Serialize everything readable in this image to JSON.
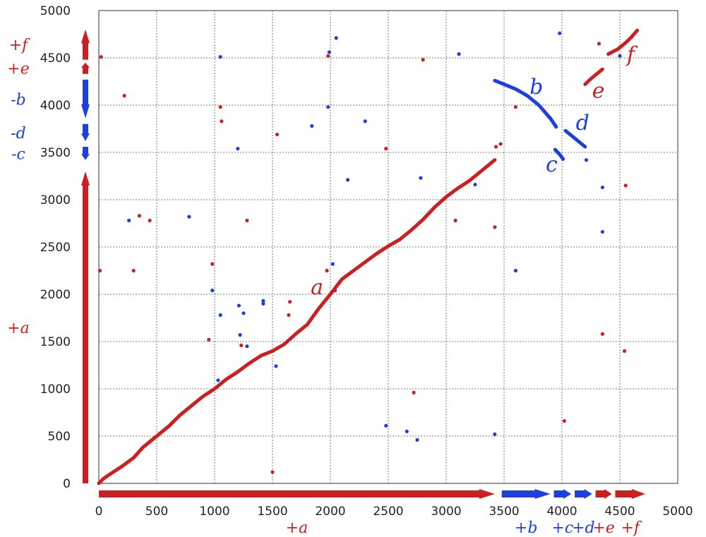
{
  "chart_data": {
    "type": "scatter",
    "title": "",
    "xlabel": "",
    "ylabel": "",
    "xlim": [
      0,
      5000
    ],
    "ylim": [
      0,
      5000
    ],
    "grid": true,
    "x_ticks": [
      "0",
      "500",
      "1000",
      "1500",
      "2000",
      "2500",
      "3000",
      "3500",
      "4000",
      "4500",
      "5000"
    ],
    "y_ticks": [
      "0",
      "500",
      "1000",
      "1500",
      "2000",
      "2500",
      "3000",
      "3500",
      "4000",
      "4500",
      "5000"
    ],
    "colors": {
      "forward": "#cc1f1f",
      "reverse": "#1d3fe0"
    },
    "x_segments": [
      {
        "label": "+a",
        "start": 0,
        "end": 3420,
        "color": "#cc1f1f"
      },
      {
        "label": "+b",
        "start": 3480,
        "end": 3900,
        "color": "#1d3fe0"
      },
      {
        "label": "+c",
        "start": 3930,
        "end": 4080,
        "color": "#1d3fe0"
      },
      {
        "label": "+d",
        "start": 4110,
        "end": 4260,
        "color": "#1d3fe0"
      },
      {
        "label": "+e",
        "start": 4290,
        "end": 4430,
        "color": "#cc1f1f"
      },
      {
        "label": "+f",
        "start": 4460,
        "end": 4720,
        "color": "#cc1f1f"
      }
    ],
    "y_segments": [
      {
        "label": "+a",
        "start": 0,
        "end": 3300,
        "color": "#cc1f1f",
        "dir": "up"
      },
      {
        "label": "-c",
        "start": 3420,
        "end": 3560,
        "color": "#1d3fe0",
        "dir": "down"
      },
      {
        "label": "-d",
        "start": 3620,
        "end": 3800,
        "color": "#1d3fe0",
        "dir": "down"
      },
      {
        "label": "-b",
        "start": 3860,
        "end": 4270,
        "color": "#1d3fe0",
        "dir": "down"
      },
      {
        "label": "+e",
        "start": 4330,
        "end": 4450,
        "color": "#cc1f1f",
        "dir": "up"
      },
      {
        "label": "+f",
        "start": 4480,
        "end": 4800,
        "color": "#cc1f1f",
        "dir": "up"
      }
    ],
    "series": [
      {
        "name": "a",
        "color": "#cc1f1f",
        "points": [
          [
            0,
            0
          ],
          [
            40,
            50
          ],
          [
            100,
            100
          ],
          [
            200,
            180
          ],
          [
            300,
            270
          ],
          [
            380,
            380
          ],
          [
            450,
            450
          ],
          [
            520,
            520
          ],
          [
            600,
            600
          ],
          [
            700,
            720
          ],
          [
            800,
            820
          ],
          [
            900,
            920
          ],
          [
            1000,
            1000
          ],
          [
            1100,
            1100
          ],
          [
            1200,
            1180
          ],
          [
            1300,
            1270
          ],
          [
            1400,
            1350
          ],
          [
            1500,
            1400
          ],
          [
            1600,
            1470
          ],
          [
            1700,
            1580
          ],
          [
            1800,
            1680
          ],
          [
            1900,
            1850
          ],
          [
            2000,
            2000
          ],
          [
            2100,
            2160
          ],
          [
            2200,
            2250
          ],
          [
            2300,
            2340
          ],
          [
            2400,
            2430
          ],
          [
            2500,
            2510
          ],
          [
            2600,
            2580
          ],
          [
            2700,
            2680
          ],
          [
            2800,
            2790
          ],
          [
            2900,
            2920
          ],
          [
            3000,
            3030
          ],
          [
            3100,
            3120
          ],
          [
            3200,
            3200
          ],
          [
            3300,
            3300
          ],
          [
            3420,
            3420
          ]
        ]
      },
      {
        "name": "b",
        "color": "#1d3fe0",
        "points": [
          [
            3420,
            4260
          ],
          [
            3500,
            4220
          ],
          [
            3600,
            4170
          ],
          [
            3700,
            4100
          ],
          [
            3800,
            4000
          ],
          [
            3900,
            3860
          ],
          [
            3950,
            3770
          ]
        ]
      },
      {
        "name": "c",
        "color": "#1d3fe0",
        "points": [
          [
            3940,
            3530
          ],
          [
            3980,
            3480
          ],
          [
            4010,
            3430
          ]
        ]
      },
      {
        "name": "d",
        "color": "#1d3fe0",
        "points": [
          [
            4030,
            3730
          ],
          [
            4100,
            3660
          ],
          [
            4150,
            3610
          ],
          [
            4200,
            3560
          ]
        ]
      },
      {
        "name": "e",
        "color": "#cc1f1f",
        "points": [
          [
            4200,
            4220
          ],
          [
            4250,
            4280
          ],
          [
            4300,
            4330
          ],
          [
            4350,
            4380
          ]
        ]
      },
      {
        "name": "f",
        "color": "#cc1f1f",
        "points": [
          [
            4400,
            4540
          ],
          [
            4480,
            4590
          ],
          [
            4550,
            4660
          ],
          [
            4600,
            4720
          ],
          [
            4650,
            4790
          ]
        ]
      }
    ],
    "scatter_forward": [
      [
        20,
        4510
      ],
      [
        220,
        4100
      ],
      [
        10,
        2250
      ],
      [
        300,
        2250
      ],
      [
        350,
        2830
      ],
      [
        440,
        2780
      ],
      [
        980,
        2320
      ],
      [
        950,
        1520
      ],
      [
        1050,
        3980
      ],
      [
        1060,
        3830
      ],
      [
        1280,
        2780
      ],
      [
        1230,
        1460
      ],
      [
        1500,
        120
      ],
      [
        1540,
        3690
      ],
      [
        1650,
        1920
      ],
      [
        1640,
        1780
      ],
      [
        1980,
        4520
      ],
      [
        1970,
        2250
      ],
      [
        2480,
        3540
      ],
      [
        2720,
        960
      ],
      [
        2800,
        4480
      ],
      [
        3080,
        2780
      ],
      [
        3420,
        2710
      ],
      [
        3430,
        3560
      ],
      [
        3470,
        3590
      ],
      [
        3600,
        3980
      ],
      [
        4020,
        660
      ],
      [
        4320,
        4650
      ],
      [
        4350,
        1580
      ],
      [
        4540,
        1400
      ],
      [
        4550,
        3150
      ]
    ],
    "scatter_reverse": [
      [
        260,
        2780
      ],
      [
        780,
        2820
      ],
      [
        980,
        2040
      ],
      [
        1050,
        4510
      ],
      [
        1050,
        1780
      ],
      [
        1200,
        3540
      ],
      [
        1210,
        1880
      ],
      [
        1220,
        1570
      ],
      [
        1250,
        1800
      ],
      [
        1280,
        1450
      ],
      [
        1420,
        1930
      ],
      [
        1420,
        1900
      ],
      [
        1530,
        1240
      ],
      [
        1840,
        3780
      ],
      [
        1980,
        3980
      ],
      [
        1990,
        4560
      ],
      [
        2020,
        2320
      ],
      [
        2050,
        4710
      ],
      [
        2150,
        3210
      ],
      [
        2300,
        3830
      ],
      [
        2480,
        610
      ],
      [
        2660,
        550
      ],
      [
        2750,
        460
      ],
      [
        2780,
        3230
      ],
      [
        3110,
        4540
      ],
      [
        3250,
        3160
      ],
      [
        3420,
        520
      ],
      [
        3600,
        2250
      ],
      [
        3980,
        4760
      ],
      [
        4210,
        3420
      ],
      [
        4350,
        3130
      ],
      [
        4350,
        2660
      ],
      [
        4500,
        4520
      ],
      [
        1030,
        1090
      ],
      [
        2040,
        2040
      ]
    ],
    "curve_labels": [
      {
        "text": "a",
        "x": 1830,
        "y": 2000,
        "color": "#cc1f1f"
      },
      {
        "text": "b",
        "x": 3720,
        "y": 4120,
        "color": "#1d3fe0"
      },
      {
        "text": "c",
        "x": 3860,
        "y": 3300,
        "color": "#1d3fe0"
      },
      {
        "text": "d",
        "x": 4120,
        "y": 3740,
        "color": "#1d3fe0"
      },
      {
        "text": "e",
        "x": 4260,
        "y": 4080,
        "color": "#cc1f1f"
      },
      {
        "text": "f",
        "x": 4560,
        "y": 4460,
        "color": "#cc1f1f"
      }
    ]
  }
}
